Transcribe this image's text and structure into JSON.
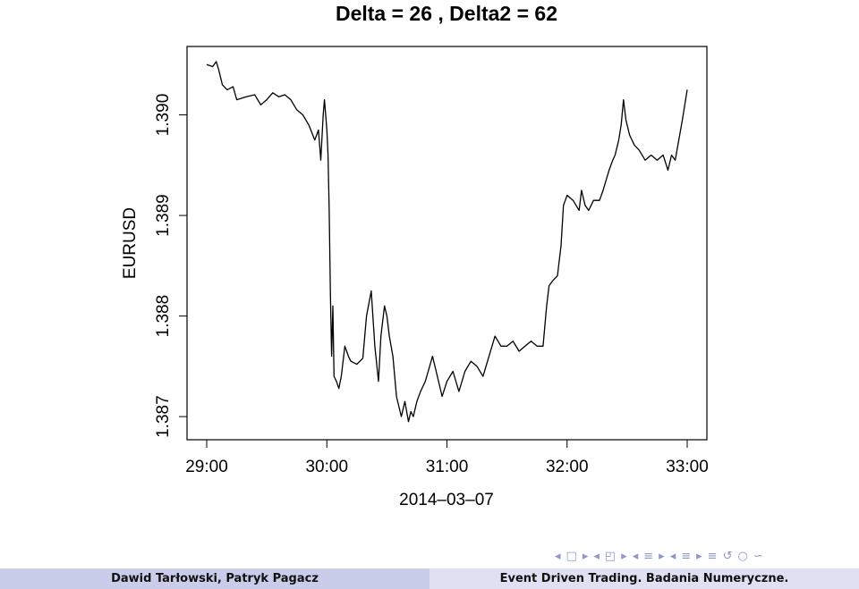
{
  "chart_data": {
    "type": "line",
    "title": "Delta =  26 , Delta2 =  62",
    "xlabel": "2014–03–07",
    "ylabel": "EURUSD",
    "x_ticks": [
      "29:00",
      "30:00",
      "31:00",
      "32:00",
      "33:00"
    ],
    "y_ticks": [
      "1.387",
      "1.388",
      "1.389",
      "1.390"
    ],
    "x_range_minutes": [
      29.0,
      33.0
    ],
    "ylim": [
      1.38677,
      1.39068
    ],
    "grid": false,
    "series": [
      {
        "color": "#000000",
        "points": [
          [
            29.0,
            1.3905
          ],
          [
            29.05,
            1.39048
          ],
          [
            29.08,
            1.39053
          ],
          [
            29.1,
            1.39045
          ],
          [
            29.13,
            1.3903
          ],
          [
            29.17,
            1.39025
          ],
          [
            29.22,
            1.39028
          ],
          [
            29.25,
            1.39015
          ],
          [
            29.33,
            1.39018
          ],
          [
            29.4,
            1.3902
          ],
          [
            29.45,
            1.3901
          ],
          [
            29.5,
            1.39015
          ],
          [
            29.55,
            1.39022
          ],
          [
            29.6,
            1.39018
          ],
          [
            29.65,
            1.3902
          ],
          [
            29.7,
            1.39015
          ],
          [
            29.75,
            1.39005
          ],
          [
            29.8,
            1.39
          ],
          [
            29.85,
            1.3899
          ],
          [
            29.9,
            1.38975
          ],
          [
            29.93,
            1.38985
          ],
          [
            29.95,
            1.38955
          ],
          [
            29.97,
            1.39
          ],
          [
            29.98,
            1.39015
          ],
          [
            30.0,
            1.38985
          ],
          [
            30.01,
            1.3896
          ],
          [
            30.02,
            1.38905
          ],
          [
            30.03,
            1.3882
          ],
          [
            30.04,
            1.3876
          ],
          [
            30.05,
            1.3881
          ],
          [
            30.06,
            1.3874
          ],
          [
            30.08,
            1.38735
          ],
          [
            30.1,
            1.38728
          ],
          [
            30.12,
            1.3874
          ],
          [
            30.15,
            1.3877
          ],
          [
            30.18,
            1.3876
          ],
          [
            30.2,
            1.38755
          ],
          [
            30.25,
            1.38752
          ],
          [
            30.3,
            1.38758
          ],
          [
            30.33,
            1.388
          ],
          [
            30.37,
            1.38825
          ],
          [
            30.4,
            1.3877
          ],
          [
            30.43,
            1.38735
          ],
          [
            30.45,
            1.3878
          ],
          [
            30.48,
            1.3881
          ],
          [
            30.5,
            1.388
          ],
          [
            30.52,
            1.3878
          ],
          [
            30.55,
            1.3876
          ],
          [
            30.58,
            1.3872
          ],
          [
            30.62,
            1.387
          ],
          [
            30.65,
            1.38715
          ],
          [
            30.68,
            1.38695
          ],
          [
            30.7,
            1.38705
          ],
          [
            30.72,
            1.387
          ],
          [
            30.75,
            1.38715
          ],
          [
            30.78,
            1.38725
          ],
          [
            30.82,
            1.38735
          ],
          [
            30.88,
            1.3876
          ],
          [
            30.92,
            1.3874
          ],
          [
            30.96,
            1.3872
          ],
          [
            31.0,
            1.38735
          ],
          [
            31.05,
            1.38745
          ],
          [
            31.1,
            1.38725
          ],
          [
            31.15,
            1.38745
          ],
          [
            31.2,
            1.38755
          ],
          [
            31.25,
            1.3875
          ],
          [
            31.3,
            1.3874
          ],
          [
            31.35,
            1.3876
          ],
          [
            31.4,
            1.3878
          ],
          [
            31.45,
            1.3877
          ],
          [
            31.5,
            1.3877
          ],
          [
            31.55,
            1.38775
          ],
          [
            31.6,
            1.38765
          ],
          [
            31.65,
            1.3877
          ],
          [
            31.7,
            1.38775
          ],
          [
            31.75,
            1.3877
          ],
          [
            31.8,
            1.3877
          ],
          [
            31.83,
            1.3881
          ],
          [
            31.85,
            1.3883
          ],
          [
            31.88,
            1.38835
          ],
          [
            31.92,
            1.3884
          ],
          [
            31.95,
            1.3887
          ],
          [
            31.97,
            1.3891
          ],
          [
            32.0,
            1.3892
          ],
          [
            32.05,
            1.38915
          ],
          [
            32.1,
            1.38905
          ],
          [
            32.12,
            1.38925
          ],
          [
            32.15,
            1.3891
          ],
          [
            32.18,
            1.38905
          ],
          [
            32.22,
            1.38915
          ],
          [
            32.27,
            1.38915
          ],
          [
            32.3,
            1.38925
          ],
          [
            32.35,
            1.38945
          ],
          [
            32.38,
            1.38955
          ],
          [
            32.4,
            1.3896
          ],
          [
            32.43,
            1.38975
          ],
          [
            32.45,
            1.3899
          ],
          [
            32.47,
            1.39015
          ],
          [
            32.49,
            1.38995
          ],
          [
            32.52,
            1.3898
          ],
          [
            32.56,
            1.3897
          ],
          [
            32.6,
            1.38965
          ],
          [
            32.65,
            1.38955
          ],
          [
            32.7,
            1.3896
          ],
          [
            32.75,
            1.38955
          ],
          [
            32.8,
            1.3896
          ],
          [
            32.84,
            1.38945
          ],
          [
            32.87,
            1.3896
          ],
          [
            32.9,
            1.38955
          ],
          [
            32.93,
            1.38975
          ],
          [
            32.96,
            1.38995
          ],
          [
            32.98,
            1.3901
          ],
          [
            33.0,
            1.39025
          ]
        ]
      }
    ]
  },
  "nav": {
    "symbols": [
      "◂",
      "□",
      "▸",
      "◂",
      "◰",
      "▸",
      "◂",
      "≡",
      "▸",
      "◂",
      "≡",
      "▸",
      "≡",
      "↺",
      "○",
      "∽"
    ]
  },
  "footer": {
    "authors": "Dawid Tarłowski, Patryk Pagacz",
    "title": "Event Driven Trading. Badania Numeryczne."
  }
}
